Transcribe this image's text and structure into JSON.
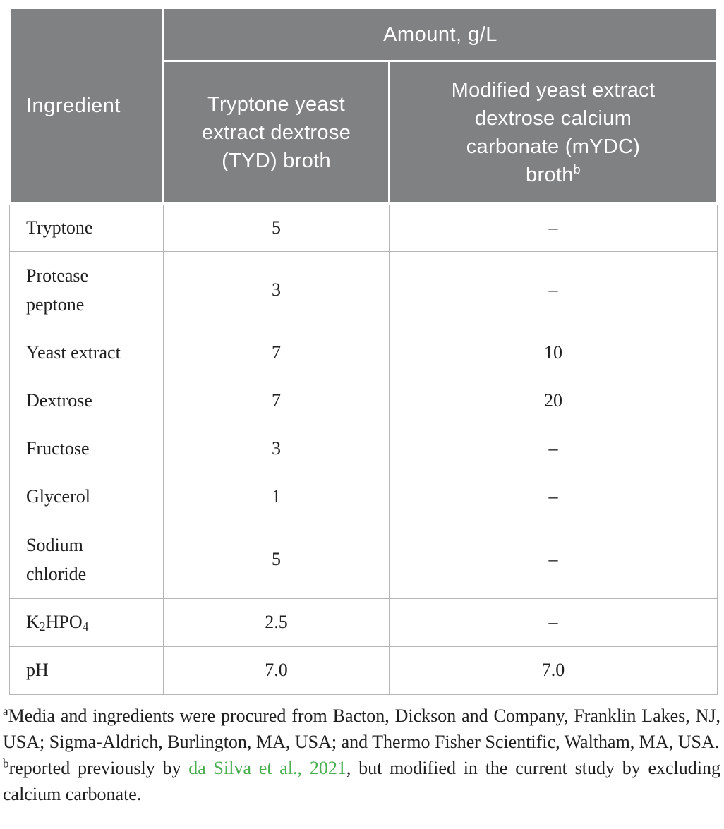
{
  "colors": {
    "header_bg": "#7f8182",
    "header_text": "#ffffff",
    "body_text": "#1f1f1f",
    "row_border": "#b5b5b5",
    "link_green": "#4bae52"
  },
  "table": {
    "corner_header": "Ingredient",
    "amount_header": "Amount, g/L",
    "col_headers": {
      "tyd_lines": [
        "Tryptone yeast",
        "extract dextrose",
        "(TYD) broth"
      ],
      "mydc_lines": [
        "Modified yeast extract",
        "dextrose calcium",
        "carbonate (mYDC)"
      ],
      "mydc_last_line": "broth",
      "mydc_sup": "b"
    },
    "rows": [
      {
        "ingredient": "Tryptone",
        "tyd": "5",
        "mydc": "–"
      },
      {
        "ingredient": "Protease peptone",
        "tyd": "3",
        "mydc": "–"
      },
      {
        "ingredient": "Yeast extract",
        "tyd": "7",
        "mydc": "10"
      },
      {
        "ingredient": "Dextrose",
        "tyd": "7",
        "mydc": "20"
      },
      {
        "ingredient": "Fructose",
        "tyd": "3",
        "mydc": "–"
      },
      {
        "ingredient": "Glycerol",
        "tyd": "1",
        "mydc": "–"
      },
      {
        "ingredient": "Sodium chloride",
        "tyd": "5",
        "mydc": "–"
      },
      {
        "formula": {
          "b1": "K",
          "s1": "2",
          "b2": "HPO",
          "s2": "4"
        },
        "tyd": "2.5",
        "mydc": "–"
      },
      {
        "ingredient": "pH",
        "tyd": "7.0",
        "mydc": "7.0"
      }
    ]
  },
  "footnotes": {
    "a_marker": "a",
    "a_text": "Media and ingredients were procured from Bacton, Dickson and Company, Franklin Lakes, NJ, USA; Sigma-Aldrich, Burlington, MA, USA; and Thermo Fisher Scientific, Waltham, MA, USA.",
    "b_marker": "b",
    "b_pre": "reported previously by ",
    "b_link": "da Silva et al., 2021",
    "b_post": ", but modified in the current study by excluding calcium carbonate."
  }
}
